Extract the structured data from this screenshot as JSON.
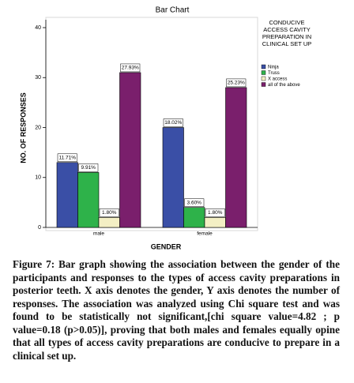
{
  "chart_data": {
    "type": "bar",
    "title": "Bar Chart",
    "x_label": "GENDER",
    "y_label": "NO. OF RESPONSES",
    "categories": [
      "male",
      "female"
    ],
    "legend_title": "CONDUCIVE ACCESS CAVITY PREPARATION IN CLINICAL SET UP",
    "series": [
      {
        "name": "Ninja",
        "color": "#3a4fa6",
        "values": [
          13,
          20
        ],
        "value_labels": [
          "11.71%",
          "18.02%"
        ]
      },
      {
        "name": "Truss",
        "color": "#2eb24a",
        "values": [
          11,
          4
        ],
        "value_labels": [
          "9.91%",
          "3.60%"
        ]
      },
      {
        "name": "X access",
        "color": "#f3efc4",
        "values": [
          2,
          2
        ],
        "value_labels": [
          "1.80%",
          "1.80%"
        ]
      },
      {
        "name": "all of the above",
        "color": "#7a1f6c",
        "values": [
          31,
          28
        ],
        "value_labels": [
          "27.93%",
          "25.23%"
        ]
      }
    ],
    "ylim": [
      0,
      40
    ],
    "yticks": [
      0,
      10,
      20,
      30,
      40
    ],
    "grid": false,
    "legend_position": "right"
  },
  "caption": "Figure 7: Bar graph showing the association between the gender of the participants and responses to the types of access cavity preparations in posterior teeth. X axis denotes the gender, Y axis denotes the number of responses. The association was analyzed using Chi square test and was found to be statistically not significant,[chi square value=4.82 ; p value=0.18 (p>0.05)], proving that both males and females equally opine that all types of access cavity preparations are conducive to prepare in a clinical set up."
}
